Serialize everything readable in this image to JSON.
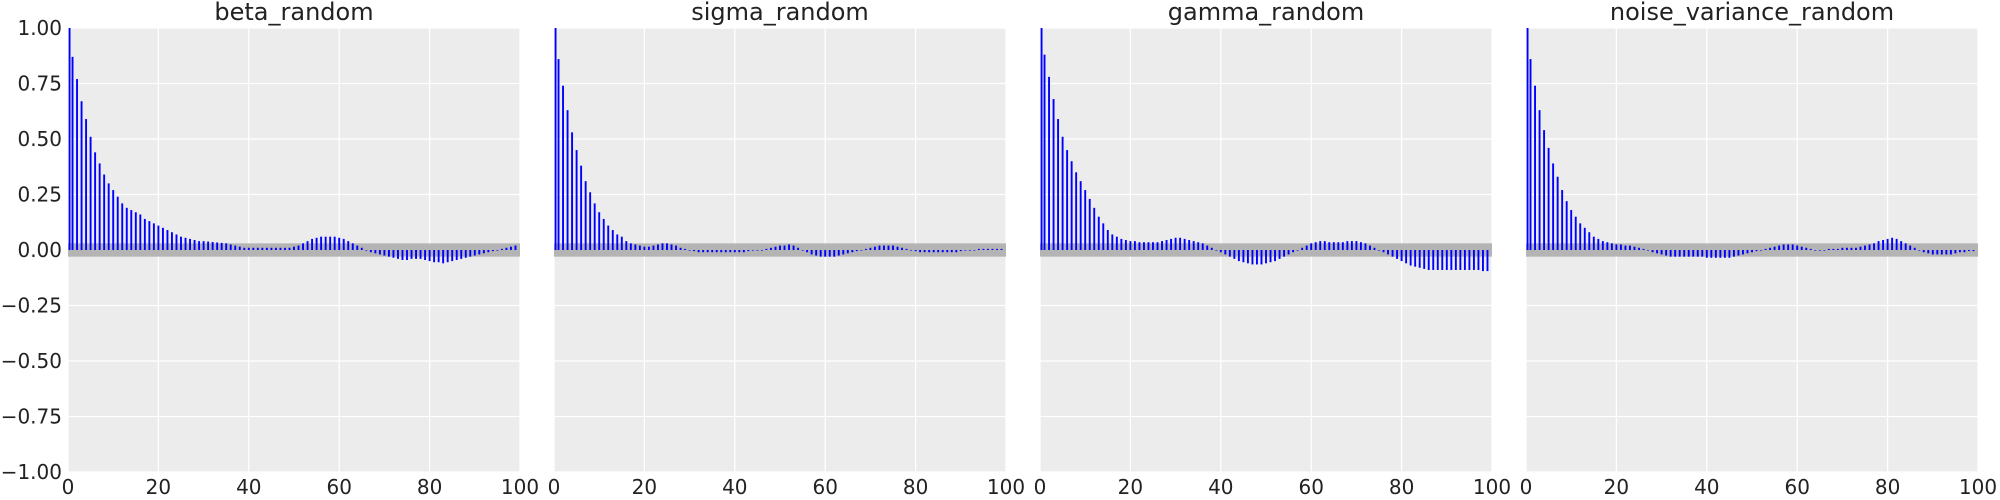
{
  "chart_data": [
    {
      "type": "bar",
      "title": "beta_random",
      "xlim": [
        0,
        100
      ],
      "ylim": [
        -1.0,
        1.0
      ],
      "x_ticks": [
        "0",
        "20",
        "40",
        "60",
        "80",
        "100"
      ],
      "y_ticks": [
        "1.00",
        "0.75",
        "0.50",
        "0.25",
        "0.00",
        "−0.25",
        "−0.50",
        "−0.75",
        "−1.00"
      ],
      "grid": true,
      "confidence_band": [
        -0.03,
        0.03
      ],
      "x": [
        0,
        1,
        2,
        3,
        4,
        5,
        6,
        7,
        8,
        9,
        10,
        11,
        12,
        13,
        14,
        15,
        16,
        17,
        18,
        19,
        20,
        21,
        22,
        23,
        24,
        25,
        26,
        27,
        28,
        29,
        30,
        31,
        32,
        33,
        34,
        35,
        36,
        37,
        38,
        39,
        40,
        41,
        42,
        43,
        44,
        45,
        46,
        47,
        48,
        49,
        50,
        51,
        52,
        53,
        54,
        55,
        56,
        57,
        58,
        59,
        60,
        61,
        62,
        63,
        64,
        65,
        66,
        67,
        68,
        69,
        70,
        71,
        72,
        73,
        74,
        75,
        76,
        77,
        78,
        79,
        80,
        81,
        82,
        83,
        84,
        85,
        86,
        87,
        88,
        89,
        90,
        91,
        92,
        93,
        94,
        95,
        96,
        97,
        98,
        99
      ],
      "values": [
        1.0,
        0.87,
        0.77,
        0.67,
        0.59,
        0.51,
        0.44,
        0.39,
        0.34,
        0.3,
        0.27,
        0.24,
        0.21,
        0.19,
        0.18,
        0.17,
        0.16,
        0.14,
        0.13,
        0.12,
        0.11,
        0.1,
        0.09,
        0.08,
        0.07,
        0.06,
        0.055,
        0.05,
        0.045,
        0.04,
        0.04,
        0.038,
        0.036,
        0.034,
        0.032,
        0.03,
        0.025,
        0.02,
        0.015,
        0.01,
        0.01,
        0.01,
        0.01,
        0.01,
        0.01,
        0.01,
        0.01,
        0.01,
        0.01,
        0.01,
        0.015,
        0.02,
        0.03,
        0.04,
        0.05,
        0.055,
        0.06,
        0.06,
        0.06,
        0.06,
        0.055,
        0.05,
        0.04,
        0.03,
        0.02,
        0.01,
        0.0,
        -0.01,
        -0.015,
        -0.02,
        -0.025,
        -0.03,
        -0.035,
        -0.04,
        -0.045,
        -0.045,
        -0.04,
        -0.04,
        -0.04,
        -0.045,
        -0.05,
        -0.055,
        -0.055,
        -0.06,
        -0.055,
        -0.05,
        -0.045,
        -0.04,
        -0.035,
        -0.03,
        -0.025,
        -0.02,
        -0.015,
        -0.01,
        -0.005,
        0.0,
        0.005,
        0.01,
        0.015,
        0.02
      ]
    },
    {
      "type": "bar",
      "title": "sigma_random",
      "xlim": [
        0,
        100
      ],
      "ylim": [
        -1.0,
        1.0
      ],
      "x_ticks": [
        "0",
        "20",
        "40",
        "60",
        "80",
        "100"
      ],
      "grid": true,
      "confidence_band": [
        -0.03,
        0.03
      ],
      "x": [
        0,
        1,
        2,
        3,
        4,
        5,
        6,
        7,
        8,
        9,
        10,
        11,
        12,
        13,
        14,
        15,
        16,
        17,
        18,
        19,
        20,
        21,
        22,
        23,
        24,
        25,
        26,
        27,
        28,
        29,
        30,
        31,
        32,
        33,
        34,
        35,
        36,
        37,
        38,
        39,
        40,
        41,
        42,
        43,
        44,
        45,
        46,
        47,
        48,
        49,
        50,
        51,
        52,
        53,
        54,
        55,
        56,
        57,
        58,
        59,
        60,
        61,
        62,
        63,
        64,
        65,
        66,
        67,
        68,
        69,
        70,
        71,
        72,
        73,
        74,
        75,
        76,
        77,
        78,
        79,
        80,
        81,
        82,
        83,
        84,
        85,
        86,
        87,
        88,
        89,
        90,
        91,
        92,
        93,
        94,
        95,
        96,
        97,
        98,
        99
      ],
      "values": [
        1.0,
        0.86,
        0.74,
        0.63,
        0.53,
        0.45,
        0.38,
        0.31,
        0.26,
        0.21,
        0.17,
        0.14,
        0.11,
        0.09,
        0.07,
        0.06,
        0.04,
        0.03,
        0.025,
        0.02,
        0.015,
        0.015,
        0.02,
        0.025,
        0.03,
        0.03,
        0.025,
        0.02,
        0.01,
        0.005,
        0.0,
        -0.005,
        -0.01,
        -0.01,
        -0.01,
        -0.01,
        -0.01,
        -0.01,
        -0.01,
        -0.01,
        -0.01,
        -0.01,
        -0.01,
        -0.005,
        0.0,
        0.0,
        0.0,
        0.005,
        0.01,
        0.015,
        0.02,
        0.02,
        0.025,
        0.02,
        0.01,
        0.0,
        -0.01,
        -0.02,
        -0.025,
        -0.03,
        -0.03,
        -0.03,
        -0.03,
        -0.025,
        -0.02,
        -0.015,
        -0.01,
        -0.005,
        0.0,
        0.005,
        0.01,
        0.015,
        0.02,
        0.02,
        0.02,
        0.02,
        0.015,
        0.01,
        0.005,
        0.0,
        -0.005,
        -0.01,
        -0.01,
        -0.01,
        -0.01,
        -0.01,
        -0.01,
        -0.01,
        -0.01,
        -0.01,
        -0.005,
        0.0,
        0.0,
        0.0,
        0.005,
        0.005,
        0.005,
        0.005,
        0.005,
        0.005
      ]
    },
    {
      "type": "bar",
      "title": "gamma_random",
      "xlim": [
        0,
        100
      ],
      "ylim": [
        -1.0,
        1.0
      ],
      "x_ticks": [
        "0",
        "20",
        "40",
        "60",
        "80",
        "100"
      ],
      "grid": true,
      "confidence_band": [
        -0.03,
        0.03
      ],
      "x": [
        0,
        1,
        2,
        3,
        4,
        5,
        6,
        7,
        8,
        9,
        10,
        11,
        12,
        13,
        14,
        15,
        16,
        17,
        18,
        19,
        20,
        21,
        22,
        23,
        24,
        25,
        26,
        27,
        28,
        29,
        30,
        31,
        32,
        33,
        34,
        35,
        36,
        37,
        38,
        39,
        40,
        41,
        42,
        43,
        44,
        45,
        46,
        47,
        48,
        49,
        50,
        51,
        52,
        53,
        54,
        55,
        56,
        57,
        58,
        59,
        60,
        61,
        62,
        63,
        64,
        65,
        66,
        67,
        68,
        69,
        70,
        71,
        72,
        73,
        74,
        75,
        76,
        77,
        78,
        79,
        80,
        81,
        82,
        83,
        84,
        85,
        86,
        87,
        88,
        89,
        90,
        91,
        92,
        93,
        94,
        95,
        96,
        97,
        98,
        99
      ],
      "values": [
        1.0,
        0.88,
        0.78,
        0.68,
        0.59,
        0.51,
        0.45,
        0.4,
        0.35,
        0.31,
        0.27,
        0.23,
        0.19,
        0.15,
        0.12,
        0.09,
        0.07,
        0.06,
        0.05,
        0.045,
        0.04,
        0.04,
        0.035,
        0.035,
        0.035,
        0.035,
        0.035,
        0.04,
        0.045,
        0.05,
        0.055,
        0.055,
        0.05,
        0.045,
        0.04,
        0.035,
        0.03,
        0.02,
        0.01,
        0.0,
        -0.01,
        -0.02,
        -0.03,
        -0.04,
        -0.05,
        -0.055,
        -0.06,
        -0.065,
        -0.065,
        -0.065,
        -0.06,
        -0.055,
        -0.05,
        -0.04,
        -0.03,
        -0.02,
        -0.01,
        0.0,
        0.01,
        0.02,
        0.03,
        0.035,
        0.04,
        0.04,
        0.035,
        0.035,
        0.035,
        0.035,
        0.04,
        0.04,
        0.04,
        0.035,
        0.03,
        0.02,
        0.01,
        0.0,
        -0.01,
        -0.02,
        -0.03,
        -0.04,
        -0.05,
        -0.06,
        -0.07,
        -0.075,
        -0.08,
        -0.085,
        -0.09,
        -0.09,
        -0.09,
        -0.09,
        -0.09,
        -0.09,
        -0.09,
        -0.09,
        -0.09,
        -0.09,
        -0.09,
        -0.09,
        -0.095,
        -0.095
      ]
    },
    {
      "type": "bar",
      "title": "noise_variance_random",
      "xlim": [
        0,
        100
      ],
      "ylim": [
        -1.0,
        1.0
      ],
      "x_ticks": [
        "0",
        "20",
        "40",
        "60",
        "80",
        "100"
      ],
      "grid": true,
      "confidence_band": [
        -0.03,
        0.03
      ],
      "x": [
        0,
        1,
        2,
        3,
        4,
        5,
        6,
        7,
        8,
        9,
        10,
        11,
        12,
        13,
        14,
        15,
        16,
        17,
        18,
        19,
        20,
        21,
        22,
        23,
        24,
        25,
        26,
        27,
        28,
        29,
        30,
        31,
        32,
        33,
        34,
        35,
        36,
        37,
        38,
        39,
        40,
        41,
        42,
        43,
        44,
        45,
        46,
        47,
        48,
        49,
        50,
        51,
        52,
        53,
        54,
        55,
        56,
        57,
        58,
        59,
        60,
        61,
        62,
        63,
        64,
        65,
        66,
        67,
        68,
        69,
        70,
        71,
        72,
        73,
        74,
        75,
        76,
        77,
        78,
        79,
        80,
        81,
        82,
        83,
        84,
        85,
        86,
        87,
        88,
        89,
        90,
        91,
        92,
        93,
        94,
        95,
        96,
        97,
        98,
        99
      ],
      "values": [
        1.0,
        0.86,
        0.74,
        0.63,
        0.54,
        0.46,
        0.39,
        0.33,
        0.27,
        0.22,
        0.18,
        0.15,
        0.12,
        0.1,
        0.08,
        0.06,
        0.05,
        0.04,
        0.035,
        0.03,
        0.025,
        0.025,
        0.02,
        0.02,
        0.015,
        0.01,
        0.005,
        0.0,
        -0.01,
        -0.015,
        -0.02,
        -0.025,
        -0.03,
        -0.03,
        -0.03,
        -0.03,
        -0.03,
        -0.03,
        -0.03,
        -0.03,
        -0.035,
        -0.035,
        -0.035,
        -0.035,
        -0.035,
        -0.035,
        -0.03,
        -0.025,
        -0.02,
        -0.015,
        -0.01,
        -0.005,
        0.0,
        0.005,
        0.01,
        0.015,
        0.02,
        0.025,
        0.025,
        0.025,
        0.02,
        0.015,
        0.01,
        0.005,
        0.0,
        0.0,
        0.0,
        0.005,
        0.005,
        0.005,
        0.01,
        0.01,
        0.01,
        0.01,
        0.015,
        0.02,
        0.025,
        0.03,
        0.04,
        0.045,
        0.05,
        0.055,
        0.05,
        0.04,
        0.03,
        0.02,
        0.01,
        0.0,
        -0.01,
        -0.015,
        -0.02,
        -0.02,
        -0.02,
        -0.02,
        -0.02,
        -0.015,
        -0.01,
        -0.01,
        -0.005,
        -0.005
      ]
    }
  ]
}
